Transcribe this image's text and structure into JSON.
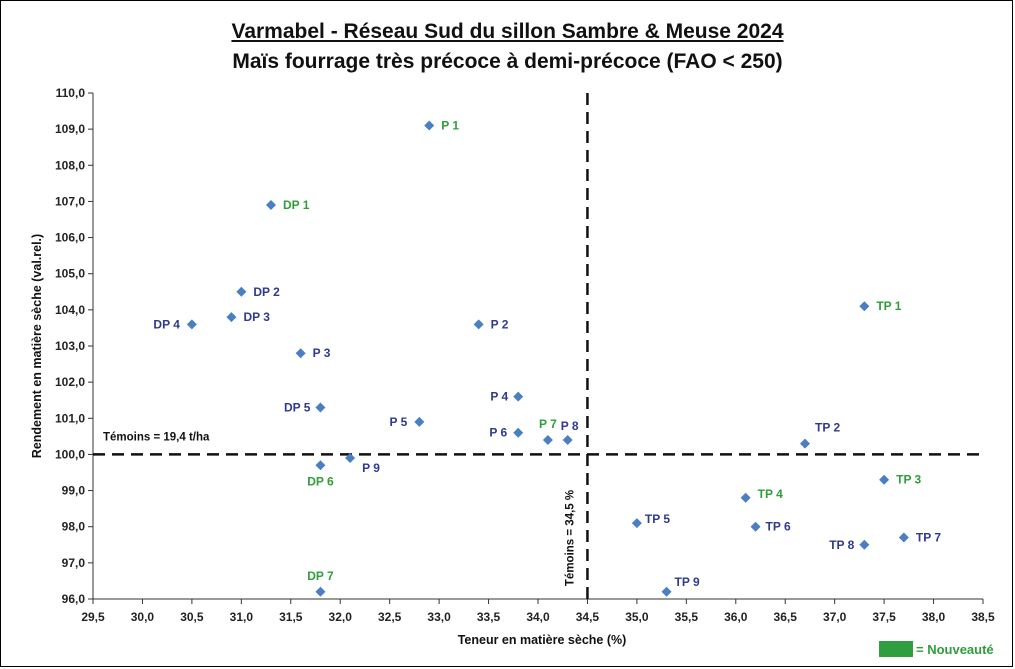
{
  "chart_data": {
    "type": "scatter",
    "title": "Varmabel - Réseau Sud du sillon Sambre & Meuse 2024",
    "subtitle": "Maïs fourrage très précoce à demi-précoce (FAO < 250)",
    "xlabel": "Teneur en matière sèche (%)",
    "ylabel": "Rendement en matière sèche (val.rel.)",
    "xlim": [
      29.5,
      38.5
    ],
    "ylim": [
      96.0,
      110.0
    ],
    "x_ticks": [
      "29,5",
      "30,0",
      "30,5",
      "31,0",
      "31,5",
      "32,0",
      "32,5",
      "33,0",
      "33,5",
      "34,0",
      "34,5",
      "35,0",
      "35,5",
      "36,0",
      "36,5",
      "37,0",
      "37,5",
      "38,0",
      "38,5"
    ],
    "y_ticks": [
      "96,0",
      "97,0",
      "98,0",
      "99,0",
      "100,0",
      "101,0",
      "102,0",
      "103,0",
      "104,0",
      "105,0",
      "106,0",
      "107,0",
      "108,0",
      "109,0",
      "110,0"
    ],
    "grid": false,
    "points": [
      {
        "label": "P 1",
        "x": 32.9,
        "y": 109.1,
        "new": true
      },
      {
        "label": "DP 1",
        "x": 31.3,
        "y": 106.9,
        "new": true
      },
      {
        "label": "DP 2",
        "x": 31.0,
        "y": 104.5,
        "new": false
      },
      {
        "label": "DP 3",
        "x": 30.9,
        "y": 103.8,
        "new": false
      },
      {
        "label": "DP 4",
        "x": 30.5,
        "y": 103.6,
        "new": false
      },
      {
        "label": "P 2",
        "x": 33.4,
        "y": 103.6,
        "new": false
      },
      {
        "label": "P 3",
        "x": 31.6,
        "y": 102.8,
        "new": false
      },
      {
        "label": "P 4",
        "x": 33.8,
        "y": 101.6,
        "new": false
      },
      {
        "label": "DP 5",
        "x": 31.8,
        "y": 101.3,
        "new": false
      },
      {
        "label": "P 5",
        "x": 32.8,
        "y": 100.9,
        "new": false
      },
      {
        "label": "P 6",
        "x": 33.8,
        "y": 100.6,
        "new": false
      },
      {
        "label": "P 7",
        "x": 34.1,
        "y": 100.4,
        "new": true
      },
      {
        "label": "P 8",
        "x": 34.3,
        "y": 100.4,
        "new": false
      },
      {
        "label": "P 9",
        "x": 32.1,
        "y": 99.9,
        "new": false
      },
      {
        "label": "DP 6",
        "x": 31.8,
        "y": 99.7,
        "new": true
      },
      {
        "label": "DP 7",
        "x": 31.8,
        "y": 96.2,
        "new": true
      },
      {
        "label": "TP 1",
        "x": 37.3,
        "y": 104.1,
        "new": true
      },
      {
        "label": "TP 2",
        "x": 36.7,
        "y": 100.3,
        "new": false
      },
      {
        "label": "TP 3",
        "x": 37.5,
        "y": 99.3,
        "new": true
      },
      {
        "label": "TP 4",
        "x": 36.1,
        "y": 98.8,
        "new": true
      },
      {
        "label": "TP 5",
        "x": 35.0,
        "y": 98.1,
        "new": false
      },
      {
        "label": "TP 6",
        "x": 36.2,
        "y": 98.0,
        "new": false
      },
      {
        "label": "TP 7",
        "x": 37.7,
        "y": 97.7,
        "new": false
      },
      {
        "label": "TP 8",
        "x": 37.3,
        "y": 97.5,
        "new": false
      },
      {
        "label": "TP 9",
        "x": 35.3,
        "y": 96.2,
        "new": false
      }
    ],
    "reference_lines": [
      {
        "orientation": "horizontal",
        "value": 100.0,
        "label": "Témoins = 19,4 t/ha"
      },
      {
        "orientation": "vertical",
        "value": 34.5,
        "label": "Témoins = 34,5 %"
      }
    ],
    "legend": {
      "label": "= Nouveauté",
      "position": "bottom-right"
    },
    "colors": {
      "marker": "#4a7fc1",
      "label_default": "#2e3a8c",
      "label_new": "#2f9e3a",
      "swatch_new": "#2e9e3e"
    }
  }
}
